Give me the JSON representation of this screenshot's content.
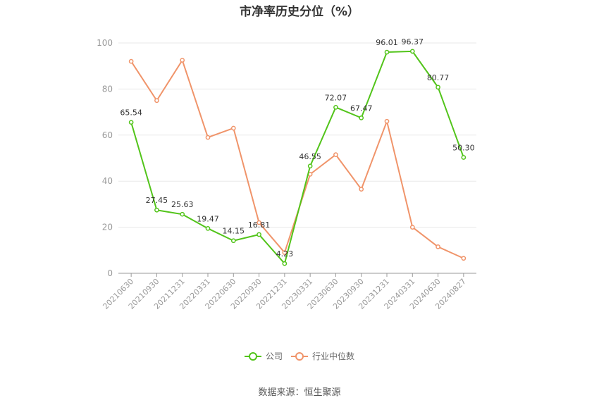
{
  "chart_data": {
    "type": "line",
    "title": "市净率历史分位（%）",
    "categories": [
      "20210630",
      "20210930",
      "20211231",
      "20220331",
      "20220630",
      "20220930",
      "20221231",
      "20230331",
      "20230630",
      "20230930",
      "20231231",
      "20240331",
      "20240630",
      "20240827"
    ],
    "series": [
      {
        "name": "公司",
        "color": "#52c41a",
        "values": [
          65.54,
          27.45,
          25.63,
          19.47,
          14.15,
          16.81,
          4.23,
          46.55,
          72.07,
          67.47,
          96.01,
          96.37,
          80.77,
          50.3
        ],
        "labels": [
          "65.54",
          "27.45",
          "25.63",
          "19.47",
          "14.15",
          "16.81",
          "4.23",
          "46.55",
          "72.07",
          "67.47",
          "96.01",
          "96.37",
          "80.77",
          "50.30"
        ]
      },
      {
        "name": "行业中位数",
        "color": "#f0946a",
        "values": [
          92,
          75,
          92.5,
          59,
          63,
          22,
          9,
          43,
          51.5,
          36.5,
          66,
          20,
          11.5,
          6.5
        ]
      }
    ],
    "ylim": [
      0,
      100
    ],
    "yticks": [
      "0",
      "20",
      "40",
      "60",
      "80",
      "100"
    ],
    "grid": true,
    "legend": "bottom"
  },
  "source": "数据来源：恒生聚源"
}
